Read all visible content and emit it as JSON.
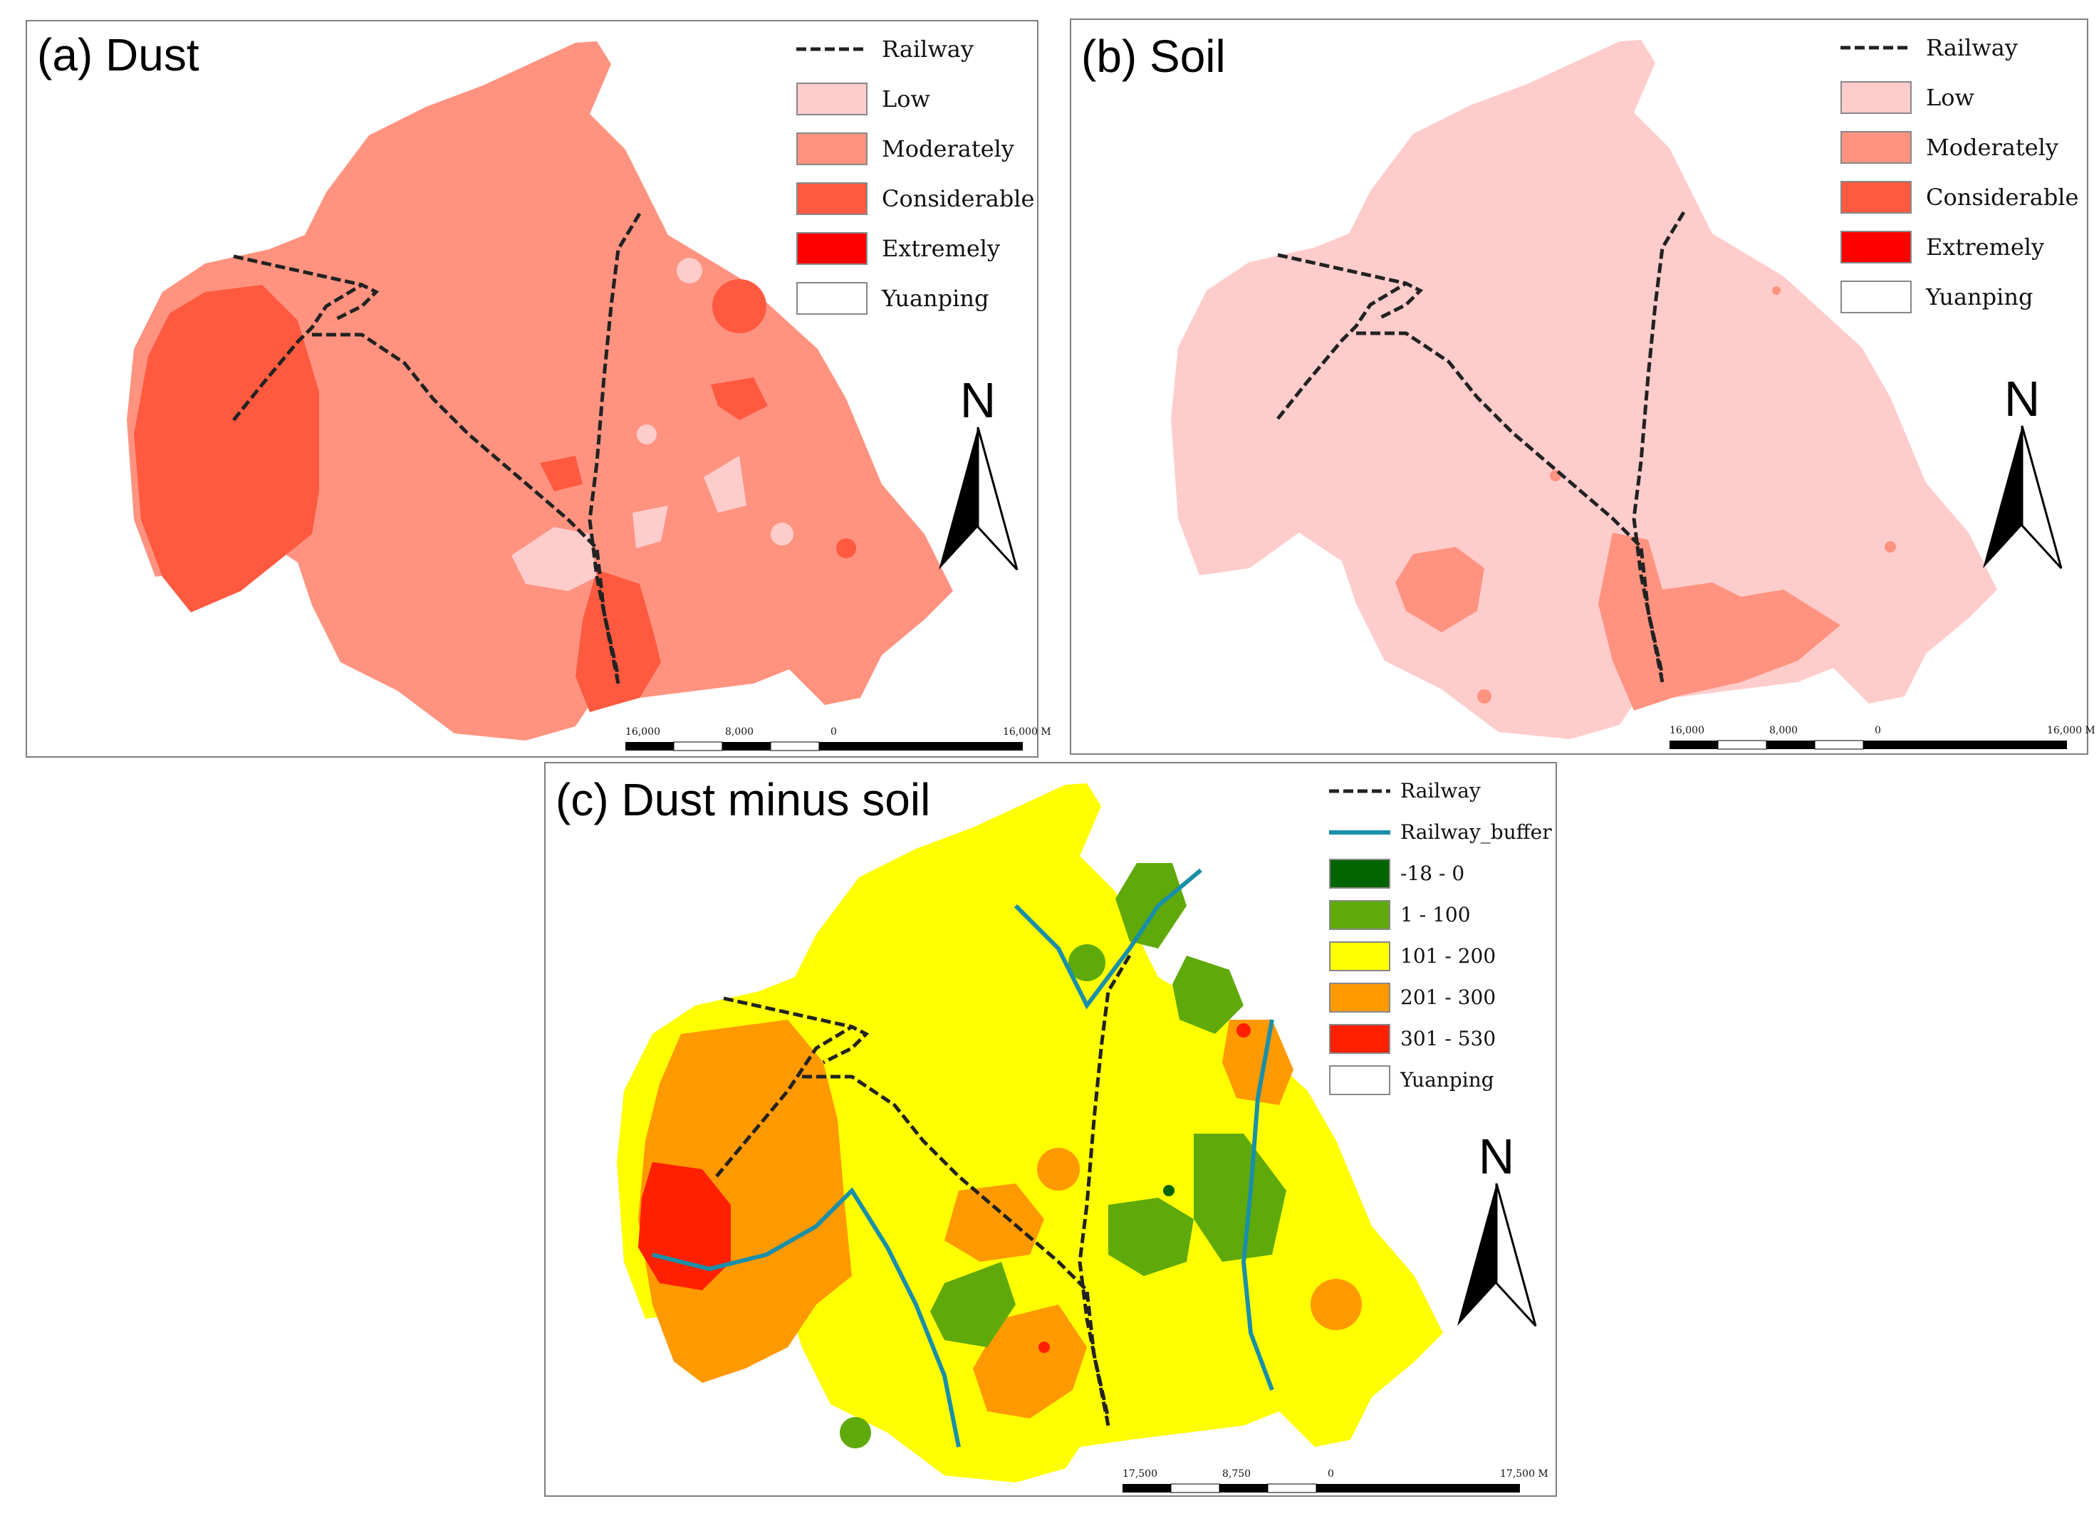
{
  "colors": {
    "low": "#ffcccc",
    "moderately": "#ff9380",
    "considerable": "#ff5a40",
    "extremely": "#ff0000",
    "diff_neg": "#006400",
    "diff_1_100": "#5faa0a",
    "diff_101_200": "#ffff00",
    "diff_201_300": "#ff9900",
    "diff_301_530": "#ff2000",
    "buffer": "#1a8fa8",
    "railway": "#222222"
  },
  "panel_a": {
    "title": "(a) Dust",
    "legend": [
      {
        "label": "Railway",
        "type": "line"
      },
      {
        "label": "Low",
        "color": "#ffcccc"
      },
      {
        "label": "Moderately",
        "color": "#ff9380"
      },
      {
        "label": "Considerable",
        "color": "#ff5a40"
      },
      {
        "label": "Extremely",
        "color": "#ff0000"
      },
      {
        "label": "Yuanping",
        "color": "#ffffff"
      }
    ],
    "north": "N",
    "scale": {
      "labels": [
        "16,000",
        "8,000",
        "0",
        "16,000 M"
      ]
    }
  },
  "panel_b": {
    "title": "(b) Soil",
    "legend": [
      {
        "label": "Railway",
        "type": "line"
      },
      {
        "label": "Low",
        "color": "#ffcccc"
      },
      {
        "label": "Moderately",
        "color": "#ff9380"
      },
      {
        "label": "Considerable",
        "color": "#ff5a40"
      },
      {
        "label": "Extremely",
        "color": "#ff0000"
      },
      {
        "label": "Yuanping",
        "color": "#ffffff"
      }
    ],
    "north": "N",
    "scale": {
      "labels": [
        "16,000",
        "8,000",
        "0",
        "16,000 M"
      ]
    }
  },
  "panel_c": {
    "title": "(c) Dust minus soil",
    "legend": [
      {
        "label": "Railway",
        "type": "line"
      },
      {
        "label": "Railway_buffer",
        "type": "buffer"
      },
      {
        "label": "-18  -  0",
        "color": "#006400"
      },
      {
        "label": "1  -  100",
        "color": "#5faa0a"
      },
      {
        "label": "101  -  200",
        "color": "#ffff00"
      },
      {
        "label": "201  -  300",
        "color": "#ff9900"
      },
      {
        "label": "301  -  530",
        "color": "#ff2000"
      },
      {
        "label": "Yuanping",
        "color": "#ffffff"
      }
    ],
    "north": "N",
    "scale": {
      "labels": [
        "17,500",
        "8,750",
        "0",
        "17,500 M"
      ]
    }
  }
}
